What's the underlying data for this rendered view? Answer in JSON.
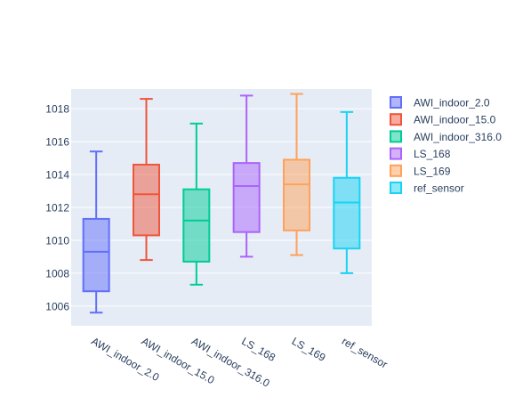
{
  "chart_data": {
    "type": "box",
    "title": "",
    "xlabel": "",
    "ylabel": "",
    "ylim": [
      1004.8,
      1019.2
    ],
    "yticks": [
      1006,
      1008,
      1010,
      1012,
      1014,
      1016,
      1018
    ],
    "grid": true,
    "legend_position": "right",
    "categories": [
      "AWI_indoor_2.0",
      "AWI_indoor_15.0",
      "AWI_indoor_316.0",
      "LS_168",
      "LS_169",
      "ref_sensor"
    ],
    "series": [
      {
        "name": "AWI_indoor_2.0",
        "color": "#636efa",
        "min": 1005.6,
        "q1": 1006.9,
        "median": 1009.3,
        "q3": 1011.3,
        "max": 1015.4
      },
      {
        "name": "AWI_indoor_15.0",
        "color": "#ef553b",
        "min": 1008.8,
        "q1": 1010.3,
        "median": 1012.8,
        "q3": 1014.6,
        "max": 1018.6
      },
      {
        "name": "AWI_indoor_316.0",
        "color": "#00cc96",
        "min": 1007.3,
        "q1": 1008.7,
        "median": 1011.2,
        "q3": 1013.1,
        "max": 1017.1
      },
      {
        "name": "LS_168",
        "color": "#ab63fa",
        "min": 1009.0,
        "q1": 1010.5,
        "median": 1013.3,
        "q3": 1014.7,
        "max": 1018.8
      },
      {
        "name": "LS_169",
        "color": "#ffa15a",
        "min": 1009.1,
        "q1": 1010.6,
        "median": 1013.4,
        "q3": 1014.9,
        "max": 1018.9
      },
      {
        "name": "ref_sensor",
        "color": "#19d3f3",
        "min": 1008.0,
        "q1": 1009.5,
        "median": 1012.3,
        "q3": 1013.8,
        "max": 1017.8
      }
    ]
  }
}
